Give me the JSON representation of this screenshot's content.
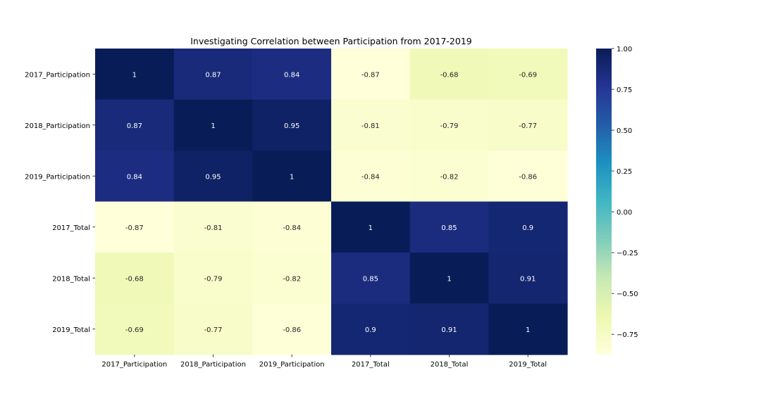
{
  "chart_data": {
    "type": "heatmap",
    "title": "Investigating Correlation between Participation from 2017-2019",
    "xlabel": "",
    "ylabel": "",
    "rows": [
      "2017_Participation",
      "2018_Participation",
      "2019_Participation",
      "2017_Total",
      "2018_Total",
      "2019_Total"
    ],
    "columns": [
      "2017_Participation",
      "2018_Participation",
      "2019_Participation",
      "2017_Total",
      "2018_Total",
      "2019_Total"
    ],
    "values": [
      [
        1,
        0.87,
        0.84,
        -0.87,
        -0.68,
        -0.69
      ],
      [
        0.87,
        1,
        0.95,
        -0.81,
        -0.79,
        -0.77
      ],
      [
        0.84,
        0.95,
        1,
        -0.84,
        -0.82,
        -0.86
      ],
      [
        -0.87,
        -0.81,
        -0.84,
        1,
        0.85,
        0.9
      ],
      [
        -0.68,
        -0.79,
        -0.82,
        0.85,
        1,
        0.91
      ],
      [
        -0.69,
        -0.77,
        -0.86,
        0.9,
        0.91,
        1
      ]
    ],
    "annotations": [
      [
        "1",
        "0.87",
        "0.84",
        "-0.87",
        "-0.68",
        "-0.69"
      ],
      [
        "0.87",
        "1",
        "0.95",
        "-0.81",
        "-0.79",
        "-0.77"
      ],
      [
        "0.84",
        "0.95",
        "1",
        "-0.84",
        "-0.82",
        "-0.86"
      ],
      [
        "-0.87",
        "-0.81",
        "-0.84",
        "1",
        "0.85",
        "0.9"
      ],
      [
        "-0.68",
        "-0.79",
        "-0.82",
        "0.85",
        "1",
        "0.91"
      ],
      [
        "-0.69",
        "-0.77",
        "-0.86",
        "0.9",
        "0.91",
        "1"
      ]
    ],
    "colormap": "YlGnBu",
    "vmin": -0.87,
    "vmax": 1.0,
    "colorbar_ticks": [
      1.0,
      0.75,
      0.5,
      0.25,
      0.0,
      -0.25,
      -0.5,
      -0.75
    ],
    "colorbar_tick_labels": [
      "1.00",
      "0.75",
      "0.50",
      "0.25",
      "0.00",
      "−0.25",
      "−0.50",
      "−0.75"
    ],
    "grid": false,
    "legend": "colorbar-right"
  }
}
